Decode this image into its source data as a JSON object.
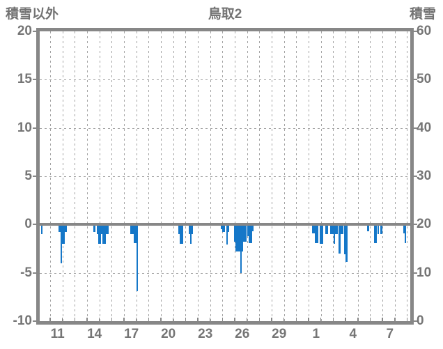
{
  "header": {
    "left_axis_title": "積雪以外",
    "chart_title": "鳥取2",
    "right_axis_title": "積雪"
  },
  "colors": {
    "bar": "#1577c8",
    "frame": "#878787",
    "grid": "#a3a3a3",
    "text": "#757575"
  },
  "chart_data": {
    "type": "bar",
    "title": "鳥取2",
    "left_axis": {
      "title": "積雪以外",
      "ticks": [
        20,
        15,
        10,
        5,
        0,
        -5,
        -10
      ],
      "range": [
        -10,
        20
      ]
    },
    "right_axis": {
      "title": "積雪",
      "ticks": [
        60,
        50,
        40,
        30,
        20,
        10,
        0
      ],
      "range": [
        0,
        60
      ]
    },
    "x_axis": {
      "tick_labels": [
        "11",
        "14",
        "17",
        "20",
        "23",
        "26",
        "29",
        "1",
        "4",
        "7"
      ],
      "label_day_indices": [
        1,
        4,
        7,
        10,
        13,
        16,
        19,
        22,
        25,
        28
      ],
      "days_shown": 30,
      "grid": "daily-dashed",
      "note": "x of bars below = px from plot left edge; one day = 17.67px; day gridline i sits at x = 15 + 17.67*i"
    },
    "legend_position": "none",
    "bar_color": "#1577c8",
    "bars": [
      {
        "x": 3.0,
        "v": -1.0
      },
      {
        "x": 28.5,
        "v": -0.8
      },
      {
        "x": 30.7,
        "v": -4.0
      },
      {
        "x": 33.0,
        "v": -2.0
      },
      {
        "x": 35.2,
        "v": -2.0
      },
      {
        "x": 37.4,
        "v": -0.8
      },
      {
        "x": 78.5,
        "v": -0.8
      },
      {
        "x": 82.8,
        "v": -1.0
      },
      {
        "x": 85.0,
        "v": -2.0
      },
      {
        "x": 87.2,
        "v": -2.0
      },
      {
        "x": 89.4,
        "v": -1.0
      },
      {
        "x": 91.6,
        "v": -2.0
      },
      {
        "x": 93.8,
        "v": -2.0
      },
      {
        "x": 96.0,
        "v": -1.0
      },
      {
        "x": 98.2,
        "v": -1.0
      },
      {
        "x": 131.5,
        "v": -1.0
      },
      {
        "x": 133.7,
        "v": -1.0
      },
      {
        "x": 135.9,
        "v": -1.9
      },
      {
        "x": 138.1,
        "v": -1.9
      },
      {
        "x": 139.9,
        "v": -6.9
      },
      {
        "x": 199.8,
        "v": -1.0
      },
      {
        "x": 202.2,
        "v": -2.0
      },
      {
        "x": 204.6,
        "v": -2.0
      },
      {
        "x": 214.8,
        "v": -1.0
      },
      {
        "x": 217.2,
        "v": -2.0
      },
      {
        "x": 219.2,
        "v": -1.0
      },
      {
        "x": 260.7,
        "v": -0.5
      },
      {
        "x": 263.0,
        "v": -0.8
      },
      {
        "x": 265.3,
        "v": -0.8
      },
      {
        "x": 268.7,
        "v": -2.1
      },
      {
        "x": 271.0,
        "v": -0.8
      },
      {
        "x": 280.0,
        "v": -1.8
      },
      {
        "x": 282.2,
        "v": -2.8
      },
      {
        "x": 284.4,
        "v": -2.8
      },
      {
        "x": 286.6,
        "v": -2.8
      },
      {
        "x": 288.8,
        "v": -5.0
      },
      {
        "x": 291.0,
        "v": -2.8
      },
      {
        "x": 293.2,
        "v": -1.8
      },
      {
        "x": 295.4,
        "v": -1.8
      },
      {
        "x": 299.0,
        "v": -1.2
      },
      {
        "x": 301.2,
        "v": -1.9
      },
      {
        "x": 303.4,
        "v": -1.9
      },
      {
        "x": 305.5,
        "v": -0.7
      },
      {
        "x": 392.0,
        "v": -0.9
      },
      {
        "x": 394.2,
        "v": -0.9
      },
      {
        "x": 396.4,
        "v": -1.9
      },
      {
        "x": 398.6,
        "v": -1.9
      },
      {
        "x": 403.5,
        "v": -2.0
      },
      {
        "x": 405.7,
        "v": -2.0
      },
      {
        "x": 411.0,
        "v": -1.0
      },
      {
        "x": 413.2,
        "v": -1.0
      },
      {
        "x": 418.5,
        "v": -1.0
      },
      {
        "x": 420.7,
        "v": -1.0
      },
      {
        "x": 422.9,
        "v": -2.0
      },
      {
        "x": 425.1,
        "v": -1.0
      },
      {
        "x": 427.3,
        "v": -1.0
      },
      {
        "x": 430.5,
        "v": -3.0
      },
      {
        "x": 433.0,
        "v": -1.0
      },
      {
        "x": 435.2,
        "v": -1.0
      },
      {
        "x": 438.0,
        "v": -3.1
      },
      {
        "x": 440.5,
        "v": -3.9
      },
      {
        "x": 471.5,
        "v": -0.7
      },
      {
        "x": 481.0,
        "v": -1.9
      },
      {
        "x": 483.2,
        "v": -1.9
      },
      {
        "x": 485.8,
        "v": -1.0
      },
      {
        "x": 490.6,
        "v": -1.0
      },
      {
        "x": 522.8,
        "v": -0.9
      },
      {
        "x": 524.7,
        "v": -1.9
      }
    ]
  }
}
